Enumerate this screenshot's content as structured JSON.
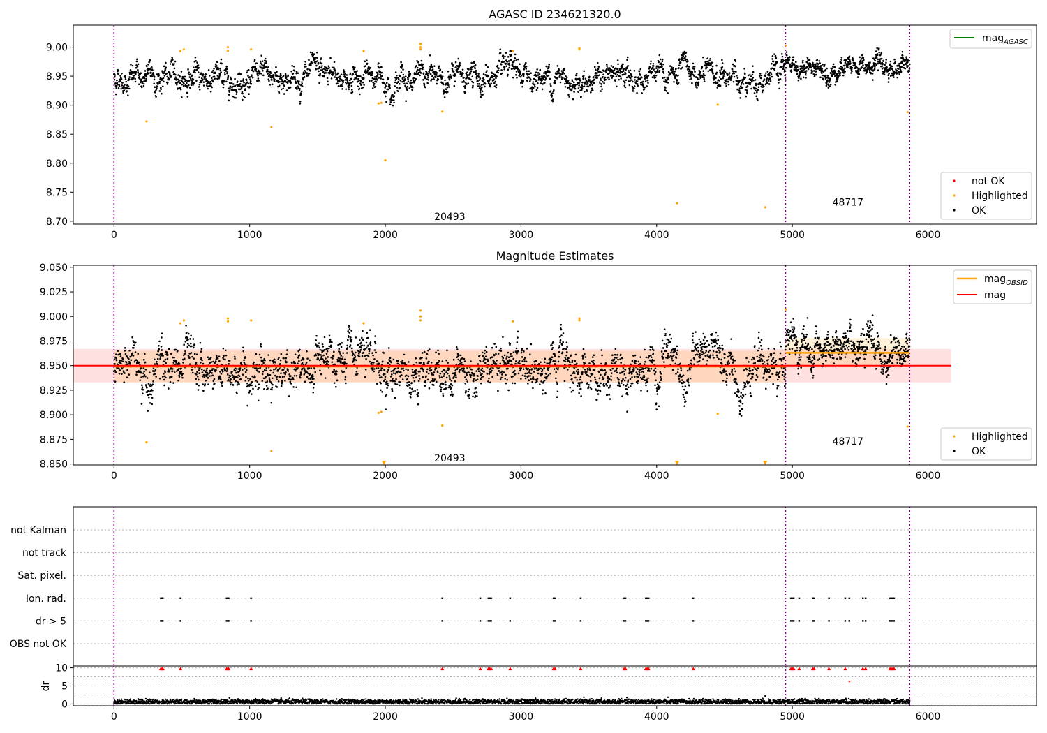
{
  "chart_data": [
    {
      "type": "scatter",
      "title": "AGASC ID 234621320.0",
      "xlabel": "",
      "ylabel": "",
      "xlim": [
        -300,
        6800
      ],
      "ylim": [
        8.695,
        9.038
      ],
      "x_ticks": [
        0,
        1000,
        2000,
        3000,
        4000,
        5000,
        6000
      ],
      "x_tick_labels": [
        "0",
        "1000",
        "2000",
        "3000",
        "4000",
        "5000",
        "6000"
      ],
      "y_ticks": [
        8.7,
        8.75,
        8.8,
        8.85,
        8.9,
        8.95,
        9.0
      ],
      "y_tick_labels": [
        "8.70",
        "8.75",
        "8.80",
        "8.85",
        "8.90",
        "8.95",
        "9.00"
      ],
      "obsid_boundaries": [
        0,
        4950,
        5865
      ],
      "obsid_boundary_color": "#800080",
      "obsid_labels": [
        {
          "text": "20493",
          "x": 2475,
          "y": 8.708
        },
        {
          "text": "48717",
          "x": 5410,
          "y": 8.733
        }
      ],
      "agasc_mag": 8.95,
      "legend_top": {
        "position": "upper right",
        "entries": [
          {
            "label_main": "mag",
            "label_sub": "AGASC",
            "color": "#008000",
            "marker": "line"
          }
        ]
      },
      "legend_bottom": {
        "position": "lower right",
        "entries": [
          {
            "label": "not OK",
            "color": "#ff0000",
            "marker": "dot"
          },
          {
            "label": "Highlighted",
            "color": "#ffa500",
            "marker": "dot"
          },
          {
            "label": "OK",
            "color": "#000000",
            "marker": "dot"
          }
        ]
      },
      "series": [
        {
          "name": "OK",
          "color": "#000000",
          "segments": [
            {
              "x_range": [
                0,
                4950
              ],
              "baseline": 8.948,
              "amplitude": 0.028,
              "count": 2600
            },
            {
              "x_range": [
                4950,
                5865
              ],
              "baseline": 8.965,
              "amplitude": 0.022,
              "count": 600
            }
          ]
        },
        {
          "name": "Highlighted",
          "color": "#ffa500",
          "points": [
            [
              240,
              8.872
            ],
            [
              490,
              8.993
            ],
            [
              515,
              8.996
            ],
            [
              840,
              8.994
            ],
            [
              840,
              9.0
            ],
            [
              1010,
              8.996
            ],
            [
              1160,
              8.862
            ],
            [
              1840,
              8.993
            ],
            [
              1950,
              8.903
            ],
            [
              1970,
              8.904
            ],
            [
              2000,
              8.805
            ],
            [
              2260,
              8.996
            ],
            [
              2260,
              9.0
            ],
            [
              2260,
              9.006
            ],
            [
              2420,
              8.889
            ],
            [
              2940,
              8.993
            ],
            [
              3430,
              8.996
            ],
            [
              3430,
              8.998
            ],
            [
              4150,
              8.731
            ],
            [
              4450,
              8.901
            ],
            [
              4800,
              8.724
            ],
            [
              4950,
              9.003
            ],
            [
              5850,
              8.888
            ]
          ]
        }
      ]
    },
    {
      "type": "scatter",
      "title": "Magnitude Estimates",
      "xlabel": "",
      "ylabel": "",
      "xlim": [
        -300,
        6800
      ],
      "ylim": [
        8.849,
        9.052
      ],
      "x_ticks": [
        0,
        1000,
        2000,
        3000,
        4000,
        5000,
        6000
      ],
      "x_tick_labels": [
        "0",
        "1000",
        "2000",
        "3000",
        "4000",
        "5000",
        "6000"
      ],
      "y_ticks": [
        8.85,
        8.875,
        8.9,
        8.925,
        8.95,
        8.975,
        9.0,
        9.025,
        9.05
      ],
      "y_tick_labels": [
        "8.850",
        "8.875",
        "8.900",
        "8.925",
        "8.950",
        "8.975",
        "9.000",
        "9.025",
        "9.050"
      ],
      "obsid_boundaries": [
        0,
        4950,
        5865
      ],
      "obsid_labels": [
        {
          "text": "20493",
          "x": 2475,
          "y": 8.856
        },
        {
          "text": "48717",
          "x": 5410,
          "y": 8.873
        }
      ],
      "mag_line": {
        "value": 8.95,
        "x_range": [
          -300,
          6170
        ],
        "band": [
          8.933,
          8.967
        ],
        "color": "#ff0000",
        "band_color": "#ffb0b0"
      },
      "mag_obsid": [
        {
          "x_range": [
            0,
            4950
          ],
          "value": 8.949,
          "band": [
            8.933,
            8.965
          ]
        },
        {
          "x_range": [
            4950,
            5865
          ],
          "value": 8.963,
          "band": [
            8.948,
            8.978
          ]
        }
      ],
      "mag_obsid_color": "#ffa500",
      "legend_top": {
        "position": "upper right",
        "entries": [
          {
            "label_main": "mag",
            "label_sub": "OBSID",
            "color": "#ffa500",
            "marker": "line"
          },
          {
            "label_main": "mag",
            "label_sub": "",
            "color": "#ff0000",
            "marker": "line"
          }
        ]
      },
      "legend_bottom": {
        "position": "lower right",
        "entries": [
          {
            "label": "Highlighted",
            "color": "#ffa500",
            "marker": "dot"
          },
          {
            "label": "OK",
            "color": "#000000",
            "marker": "dot"
          }
        ]
      },
      "series": [
        {
          "name": "OK",
          "color": "#000000",
          "segments": [
            {
              "x_range": [
                0,
                4950
              ],
              "baseline": 8.948,
              "amplitude": 0.028,
              "count": 2600
            },
            {
              "x_range": [
                4950,
                5865
              ],
              "baseline": 8.965,
              "amplitude": 0.022,
              "count": 600
            }
          ]
        },
        {
          "name": "Highlighted",
          "color": "#ffa500",
          "points": [
            [
              240,
              8.872
            ],
            [
              490,
              8.993
            ],
            [
              515,
              8.996
            ],
            [
              840,
              8.995
            ],
            [
              840,
              8.998
            ],
            [
              1010,
              8.996
            ],
            [
              1160,
              8.863
            ],
            [
              1840,
              8.993
            ],
            [
              1950,
              8.902
            ],
            [
              1970,
              8.903
            ],
            [
              2260,
              8.996
            ],
            [
              2260,
              9.0
            ],
            [
              2260,
              9.006
            ],
            [
              2420,
              8.889
            ],
            [
              2940,
              8.995
            ],
            [
              3430,
              8.996
            ],
            [
              3430,
              8.998
            ],
            [
              4450,
              8.901
            ],
            [
              4950,
              9.007
            ],
            [
              5850,
              8.888
            ]
          ]
        },
        {
          "name": "Highlighted (below range)",
          "color": "#ffa500",
          "marker": "triangle-down",
          "points": [
            [
              1990,
              8.851
            ],
            [
              4150,
              8.851
            ],
            [
              4800,
              8.851
            ]
          ]
        }
      ]
    },
    {
      "type": "scatter",
      "title": "",
      "xlim": [
        -300,
        6800
      ],
      "flag_rows": [
        "not Kalman",
        "not track",
        "Sat. pixel.",
        "Ion. rad.",
        "dr > 5",
        "OBS not OK"
      ],
      "flag_points": {
        "Ion. rad.": [
          345,
          355,
          360,
          490,
          830,
          840,
          845,
          1010,
          2420,
          2700,
          2760,
          2770,
          2780,
          2920,
          3240,
          3250,
          3440,
          3760,
          3770,
          3920,
          3930,
          3940,
          4270,
          4990,
          5000,
          5010,
          5050,
          5150,
          5160,
          5270,
          5390,
          5420,
          5520,
          5540,
          5720,
          5730,
          5740,
          5750
        ],
        "dr > 5": [
          345,
          355,
          360,
          490,
          830,
          840,
          845,
          1010,
          2420,
          2700,
          2760,
          2770,
          2780,
          2920,
          3240,
          3250,
          3440,
          3760,
          3770,
          3920,
          3930,
          3940,
          4270,
          4990,
          5000,
          5010,
          5050,
          5150,
          5160,
          5270,
          5390,
          5420,
          5520,
          5540,
          5720,
          5730,
          5740,
          5750
        ]
      },
      "obsid_boundaries": [
        0,
        4950,
        5865
      ],
      "flag_color": "#000000"
    },
    {
      "type": "scatter",
      "title": "",
      "xlabel": "",
      "ylabel": "dr",
      "xlim": [
        -300,
        6800
      ],
      "ylim": [
        -0.5,
        10.5
      ],
      "x_ticks": [
        0,
        1000,
        2000,
        3000,
        4000,
        5000,
        6000
      ],
      "x_tick_labels": [
        "0",
        "1000",
        "2000",
        "3000",
        "4000",
        "5000",
        "6000"
      ],
      "y_ticks": [
        0,
        5,
        10
      ],
      "y_tick_labels": [
        "0",
        "5",
        "10"
      ],
      "obsid_boundaries": [
        0,
        4950,
        5865
      ],
      "series": [
        {
          "name": "dr",
          "color": "#000000",
          "segments": [
            {
              "x_range": [
                0,
                5865
              ],
              "baseline": 0.6,
              "amplitude": 0.35,
              "count": 3200
            }
          ]
        },
        {
          "name": "dr clipped",
          "color": "#ff0000",
          "marker": "triangle-up",
          "points_x": [
            345,
            355,
            360,
            490,
            830,
            840,
            845,
            1010,
            2420,
            2700,
            2760,
            2770,
            2780,
            2920,
            3240,
            3250,
            3440,
            3760,
            3770,
            3920,
            3930,
            3940,
            4270,
            4990,
            5000,
            5010,
            5050,
            5150,
            5160,
            5270,
            5390,
            5520,
            5540,
            5720,
            5730,
            5740,
            5750
          ],
          "y": 9.8
        },
        {
          "name": "dr outlier",
          "color": "#ff0000",
          "points": [
            [
              5420,
              6.2
            ]
          ]
        },
        {
          "name": "dr outlier ok",
          "color": "#000000",
          "points": [
            [
              4800,
              2.2
            ]
          ]
        }
      ]
    }
  ]
}
